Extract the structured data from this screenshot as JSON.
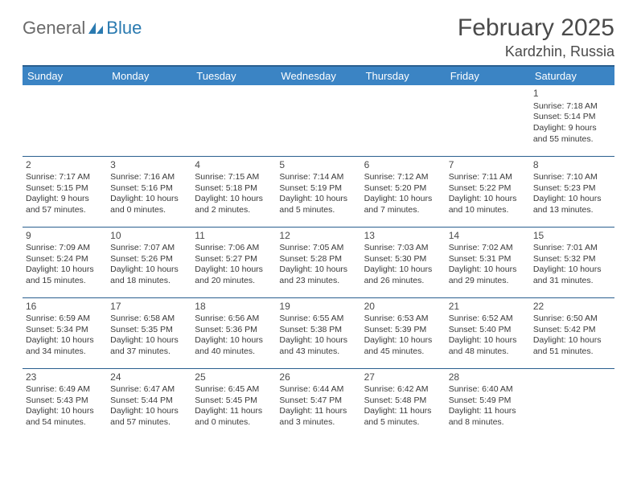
{
  "brand": {
    "general": "General",
    "blue": "Blue"
  },
  "title": "February 2025",
  "location": "Kardzhin, Russia",
  "colors": {
    "header_bg": "#3b84c4",
    "header_border": "#2a5f8f",
    "text": "#3a3a3a",
    "title_text": "#4a4a4a",
    "logo_gray": "#6a6a6a",
    "logo_blue": "#2a7ab0"
  },
  "weekdays": [
    "Sunday",
    "Monday",
    "Tuesday",
    "Wednesday",
    "Thursday",
    "Friday",
    "Saturday"
  ],
  "weeks": [
    [
      null,
      null,
      null,
      null,
      null,
      null,
      {
        "n": "1",
        "sr": "Sunrise: 7:18 AM",
        "ss": "Sunset: 5:14 PM",
        "d1": "Daylight: 9 hours",
        "d2": "and 55 minutes."
      }
    ],
    [
      {
        "n": "2",
        "sr": "Sunrise: 7:17 AM",
        "ss": "Sunset: 5:15 PM",
        "d1": "Daylight: 9 hours",
        "d2": "and 57 minutes."
      },
      {
        "n": "3",
        "sr": "Sunrise: 7:16 AM",
        "ss": "Sunset: 5:16 PM",
        "d1": "Daylight: 10 hours",
        "d2": "and 0 minutes."
      },
      {
        "n": "4",
        "sr": "Sunrise: 7:15 AM",
        "ss": "Sunset: 5:18 PM",
        "d1": "Daylight: 10 hours",
        "d2": "and 2 minutes."
      },
      {
        "n": "5",
        "sr": "Sunrise: 7:14 AM",
        "ss": "Sunset: 5:19 PM",
        "d1": "Daylight: 10 hours",
        "d2": "and 5 minutes."
      },
      {
        "n": "6",
        "sr": "Sunrise: 7:12 AM",
        "ss": "Sunset: 5:20 PM",
        "d1": "Daylight: 10 hours",
        "d2": "and 7 minutes."
      },
      {
        "n": "7",
        "sr": "Sunrise: 7:11 AM",
        "ss": "Sunset: 5:22 PM",
        "d1": "Daylight: 10 hours",
        "d2": "and 10 minutes."
      },
      {
        "n": "8",
        "sr": "Sunrise: 7:10 AM",
        "ss": "Sunset: 5:23 PM",
        "d1": "Daylight: 10 hours",
        "d2": "and 13 minutes."
      }
    ],
    [
      {
        "n": "9",
        "sr": "Sunrise: 7:09 AM",
        "ss": "Sunset: 5:24 PM",
        "d1": "Daylight: 10 hours",
        "d2": "and 15 minutes."
      },
      {
        "n": "10",
        "sr": "Sunrise: 7:07 AM",
        "ss": "Sunset: 5:26 PM",
        "d1": "Daylight: 10 hours",
        "d2": "and 18 minutes."
      },
      {
        "n": "11",
        "sr": "Sunrise: 7:06 AM",
        "ss": "Sunset: 5:27 PM",
        "d1": "Daylight: 10 hours",
        "d2": "and 20 minutes."
      },
      {
        "n": "12",
        "sr": "Sunrise: 7:05 AM",
        "ss": "Sunset: 5:28 PM",
        "d1": "Daylight: 10 hours",
        "d2": "and 23 minutes."
      },
      {
        "n": "13",
        "sr": "Sunrise: 7:03 AM",
        "ss": "Sunset: 5:30 PM",
        "d1": "Daylight: 10 hours",
        "d2": "and 26 minutes."
      },
      {
        "n": "14",
        "sr": "Sunrise: 7:02 AM",
        "ss": "Sunset: 5:31 PM",
        "d1": "Daylight: 10 hours",
        "d2": "and 29 minutes."
      },
      {
        "n": "15",
        "sr": "Sunrise: 7:01 AM",
        "ss": "Sunset: 5:32 PM",
        "d1": "Daylight: 10 hours",
        "d2": "and 31 minutes."
      }
    ],
    [
      {
        "n": "16",
        "sr": "Sunrise: 6:59 AM",
        "ss": "Sunset: 5:34 PM",
        "d1": "Daylight: 10 hours",
        "d2": "and 34 minutes."
      },
      {
        "n": "17",
        "sr": "Sunrise: 6:58 AM",
        "ss": "Sunset: 5:35 PM",
        "d1": "Daylight: 10 hours",
        "d2": "and 37 minutes."
      },
      {
        "n": "18",
        "sr": "Sunrise: 6:56 AM",
        "ss": "Sunset: 5:36 PM",
        "d1": "Daylight: 10 hours",
        "d2": "and 40 minutes."
      },
      {
        "n": "19",
        "sr": "Sunrise: 6:55 AM",
        "ss": "Sunset: 5:38 PM",
        "d1": "Daylight: 10 hours",
        "d2": "and 43 minutes."
      },
      {
        "n": "20",
        "sr": "Sunrise: 6:53 AM",
        "ss": "Sunset: 5:39 PM",
        "d1": "Daylight: 10 hours",
        "d2": "and 45 minutes."
      },
      {
        "n": "21",
        "sr": "Sunrise: 6:52 AM",
        "ss": "Sunset: 5:40 PM",
        "d1": "Daylight: 10 hours",
        "d2": "and 48 minutes."
      },
      {
        "n": "22",
        "sr": "Sunrise: 6:50 AM",
        "ss": "Sunset: 5:42 PM",
        "d1": "Daylight: 10 hours",
        "d2": "and 51 minutes."
      }
    ],
    [
      {
        "n": "23",
        "sr": "Sunrise: 6:49 AM",
        "ss": "Sunset: 5:43 PM",
        "d1": "Daylight: 10 hours",
        "d2": "and 54 minutes."
      },
      {
        "n": "24",
        "sr": "Sunrise: 6:47 AM",
        "ss": "Sunset: 5:44 PM",
        "d1": "Daylight: 10 hours",
        "d2": "and 57 minutes."
      },
      {
        "n": "25",
        "sr": "Sunrise: 6:45 AM",
        "ss": "Sunset: 5:45 PM",
        "d1": "Daylight: 11 hours",
        "d2": "and 0 minutes."
      },
      {
        "n": "26",
        "sr": "Sunrise: 6:44 AM",
        "ss": "Sunset: 5:47 PM",
        "d1": "Daylight: 11 hours",
        "d2": "and 3 minutes."
      },
      {
        "n": "27",
        "sr": "Sunrise: 6:42 AM",
        "ss": "Sunset: 5:48 PM",
        "d1": "Daylight: 11 hours",
        "d2": "and 5 minutes."
      },
      {
        "n": "28",
        "sr": "Sunrise: 6:40 AM",
        "ss": "Sunset: 5:49 PM",
        "d1": "Daylight: 11 hours",
        "d2": "and 8 minutes."
      },
      null
    ]
  ]
}
